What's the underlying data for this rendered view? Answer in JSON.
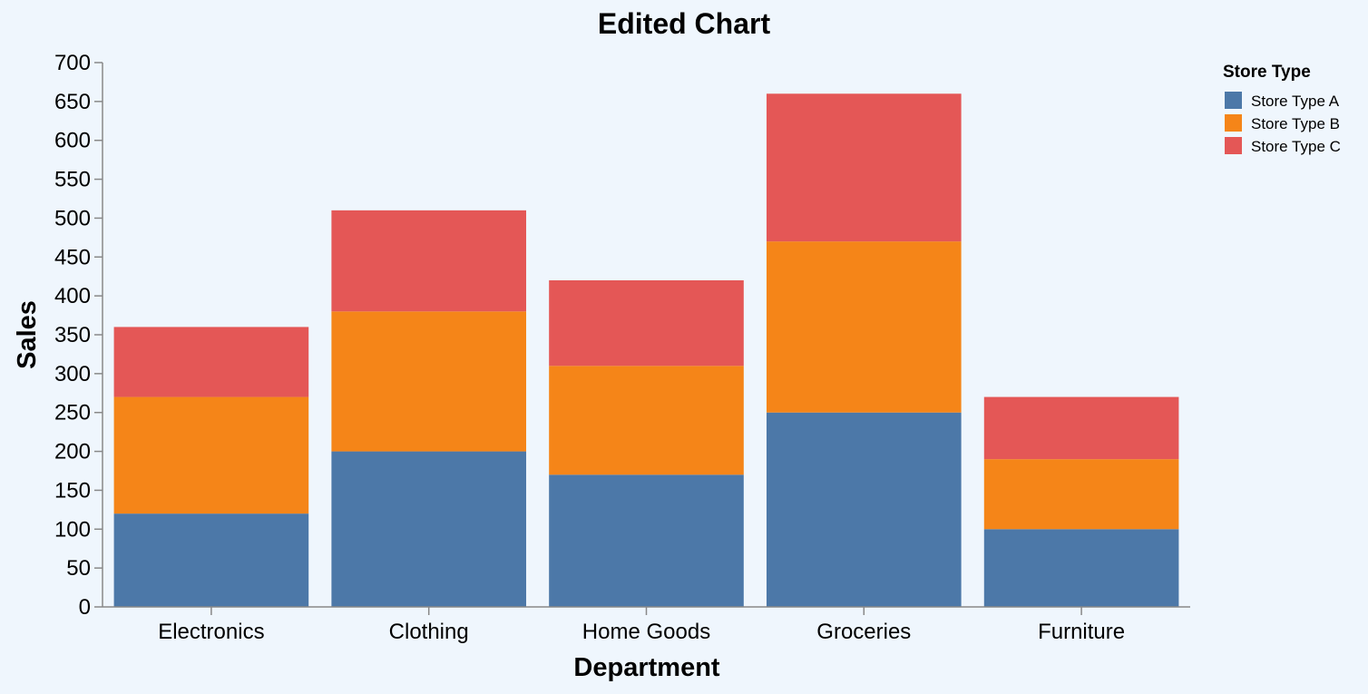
{
  "chart_data": {
    "type": "bar",
    "stacked": true,
    "title": "Edited Chart",
    "xlabel": "Department",
    "ylabel": "Sales",
    "ylim": [
      0,
      700
    ],
    "yticks": [
      "0",
      "50",
      "100",
      "150",
      "200",
      "250",
      "300",
      "350",
      "400",
      "450",
      "500",
      "550",
      "600",
      "650",
      "700"
    ],
    "categories": [
      "Electronics",
      "Clothing",
      "Home Goods",
      "Groceries",
      "Furniture"
    ],
    "series": [
      {
        "name": "Store Type A",
        "color": "#4c78a8",
        "values": [
          120,
          200,
          170,
          250,
          100
        ]
      },
      {
        "name": "Store Type B",
        "color": "#f58518",
        "values": [
          150,
          180,
          140,
          220,
          90
        ]
      },
      {
        "name": "Store Type C",
        "color": "#e45756",
        "values": [
          90,
          130,
          110,
          190,
          80
        ]
      }
    ],
    "legend": {
      "title": "Store Type",
      "placement": "top-right"
    },
    "grid": false,
    "background": "#eff6fd"
  }
}
